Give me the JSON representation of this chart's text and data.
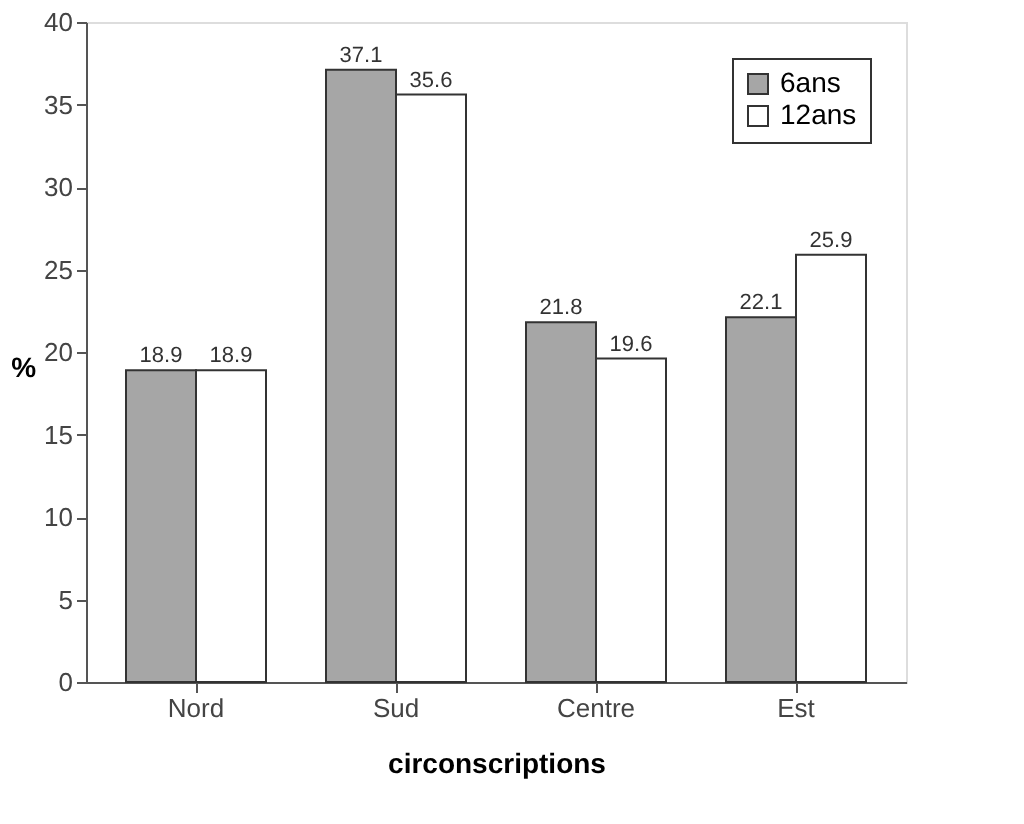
{
  "chart_data": {
    "type": "bar",
    "xlabel": "circonscriptions",
    "ylabel": "%",
    "categories": [
      "Nord",
      "Sud",
      "Centre",
      "Est"
    ],
    "series": [
      {
        "name": "6ans",
        "color": "#a6a6a6",
        "values": [
          18.9,
          37.1,
          21.8,
          22.1
        ]
      },
      {
        "name": "12ans",
        "color": "#ffffff",
        "values": [
          18.9,
          35.6,
          19.6,
          25.9
        ]
      }
    ],
    "ylim": [
      0,
      40
    ],
    "yticks": [
      0,
      5,
      10,
      15,
      20,
      25,
      30,
      35,
      40
    ],
    "grid": false,
    "legend": "top right",
    "data_labels": true
  }
}
